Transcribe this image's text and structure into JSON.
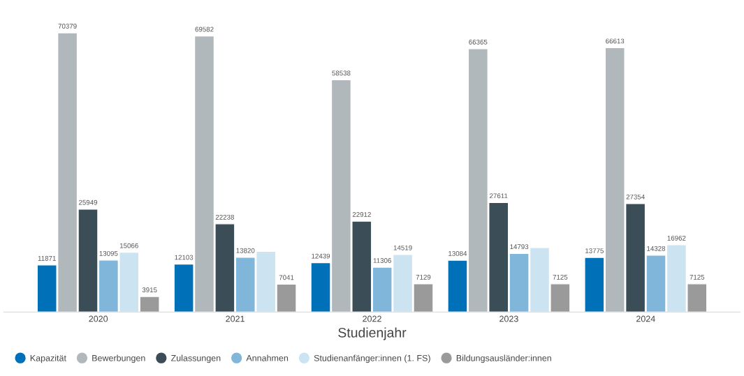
{
  "chart_data": {
    "type": "bar",
    "xlabel": "Studienjahr",
    "categories": [
      "2020",
      "2021",
      "2022",
      "2023",
      "2024"
    ],
    "series": [
      {
        "name": "Kapazität",
        "color": "#0070b8",
        "values": [
          11871,
          12103,
          12439,
          13084,
          13775
        ],
        "value_labels": [
          "11871",
          "12103",
          "12439",
          "13084",
          "13775"
        ]
      },
      {
        "name": "Bewerbungen",
        "color": "#b1b8bc",
        "values": [
          70379,
          69582,
          58538,
          66365,
          66613
        ],
        "value_labels": [
          "70379",
          "69582",
          "58538",
          "66365",
          "66613"
        ]
      },
      {
        "name": "Zulassungen",
        "color": "#3b4d57",
        "values": [
          25949,
          22238,
          22912,
          27611,
          27354
        ],
        "value_labels": [
          "25949",
          "22238",
          "22912",
          "27611",
          "27354"
        ]
      },
      {
        "name": "Annahmen",
        "color": "#80b6da",
        "values": [
          13095,
          13820,
          11306,
          14793,
          14328
        ],
        "value_labels": [
          "13095",
          "13820",
          "11306",
          "14793",
          "14328"
        ]
      },
      {
        "name": "Studienanfänger:innen (1. FS)",
        "color": "#cce3f1",
        "values": [
          15066,
          15300,
          14519,
          16270,
          16962
        ],
        "value_labels": [
          "15066",
          null,
          "14519",
          null,
          "16962"
        ]
      },
      {
        "name": "Bildungsausländer:innen",
        "color": "#9a9a9a",
        "values": [
          3915,
          7041,
          7129,
          7125,
          7125
        ],
        "value_labels": [
          "3915",
          "7041",
          "7129",
          "7125",
          "7125"
        ]
      }
    ],
    "tick_labels": "x",
    "grid": false,
    "legend": "bottom"
  }
}
